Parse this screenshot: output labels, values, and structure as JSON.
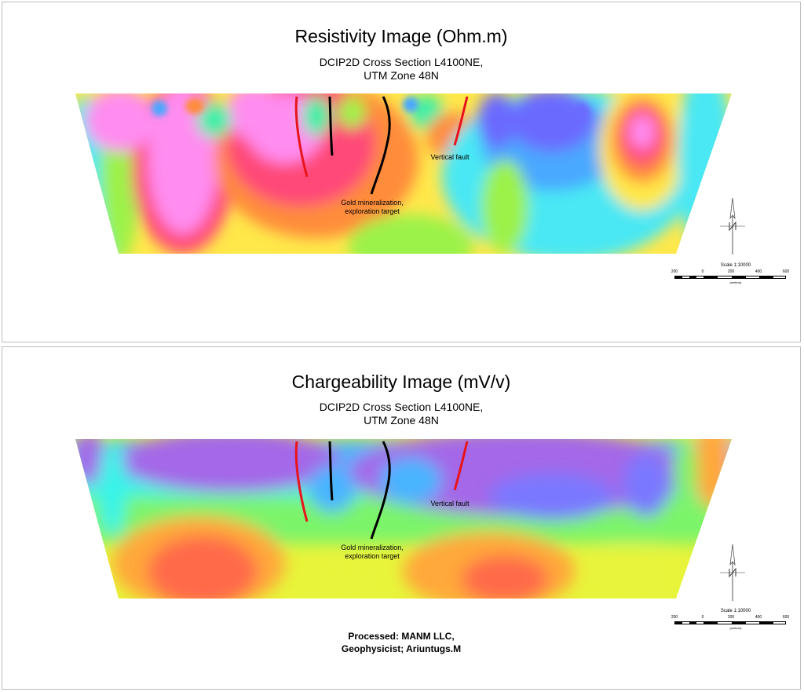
{
  "resistivity": {
    "title": "Resistivity Image (Ohm.m)",
    "subtitle_line1": "DCIP2D Cross Section L4100NE,",
    "subtitle_line2": "UTM Zone 48N",
    "label_fault": "Vertical fault",
    "label_gold_line1": "Gold mineralization,",
    "label_gold_line2": "exploration target",
    "scale_title": "Scale 1:10000",
    "scale_ticks": [
      "200",
      "0",
      "200",
      "400",
      "600"
    ],
    "scale_units": "(meters)"
  },
  "chargeability": {
    "title": "Chargeability Image (mV/v)",
    "subtitle_line1": "DCIP2D Cross Section L4100NE,",
    "subtitle_line2": "UTM Zone 48N",
    "label_fault": "Vertical fault",
    "label_gold_line1": "Gold mineralization,",
    "label_gold_line2": "exploration target",
    "scale_title": "Scale 1:10000",
    "scale_ticks": [
      "200",
      "0",
      "200",
      "400",
      "600"
    ],
    "scale_units": "(meters)"
  },
  "credit": {
    "line1": "Processed: MANM LLC,",
    "line2": "Geophysicist; Ariuntugs.M"
  },
  "colors": {
    "fault": "#e8141c",
    "target": "#000000",
    "resistivity_palette": [
      "#ff8cf0",
      "#ff4a78",
      "#ff8c3a",
      "#ffe84a",
      "#9cf24a",
      "#38f0a8",
      "#4ae8f4",
      "#4aa8ff",
      "#6a6aff"
    ],
    "chargeability_palette": [
      "#a468e8",
      "#7a78ff",
      "#4ab4ff",
      "#38f4e8",
      "#7cf46a",
      "#e8f43a",
      "#ffa83a",
      "#ff6a4a"
    ]
  }
}
